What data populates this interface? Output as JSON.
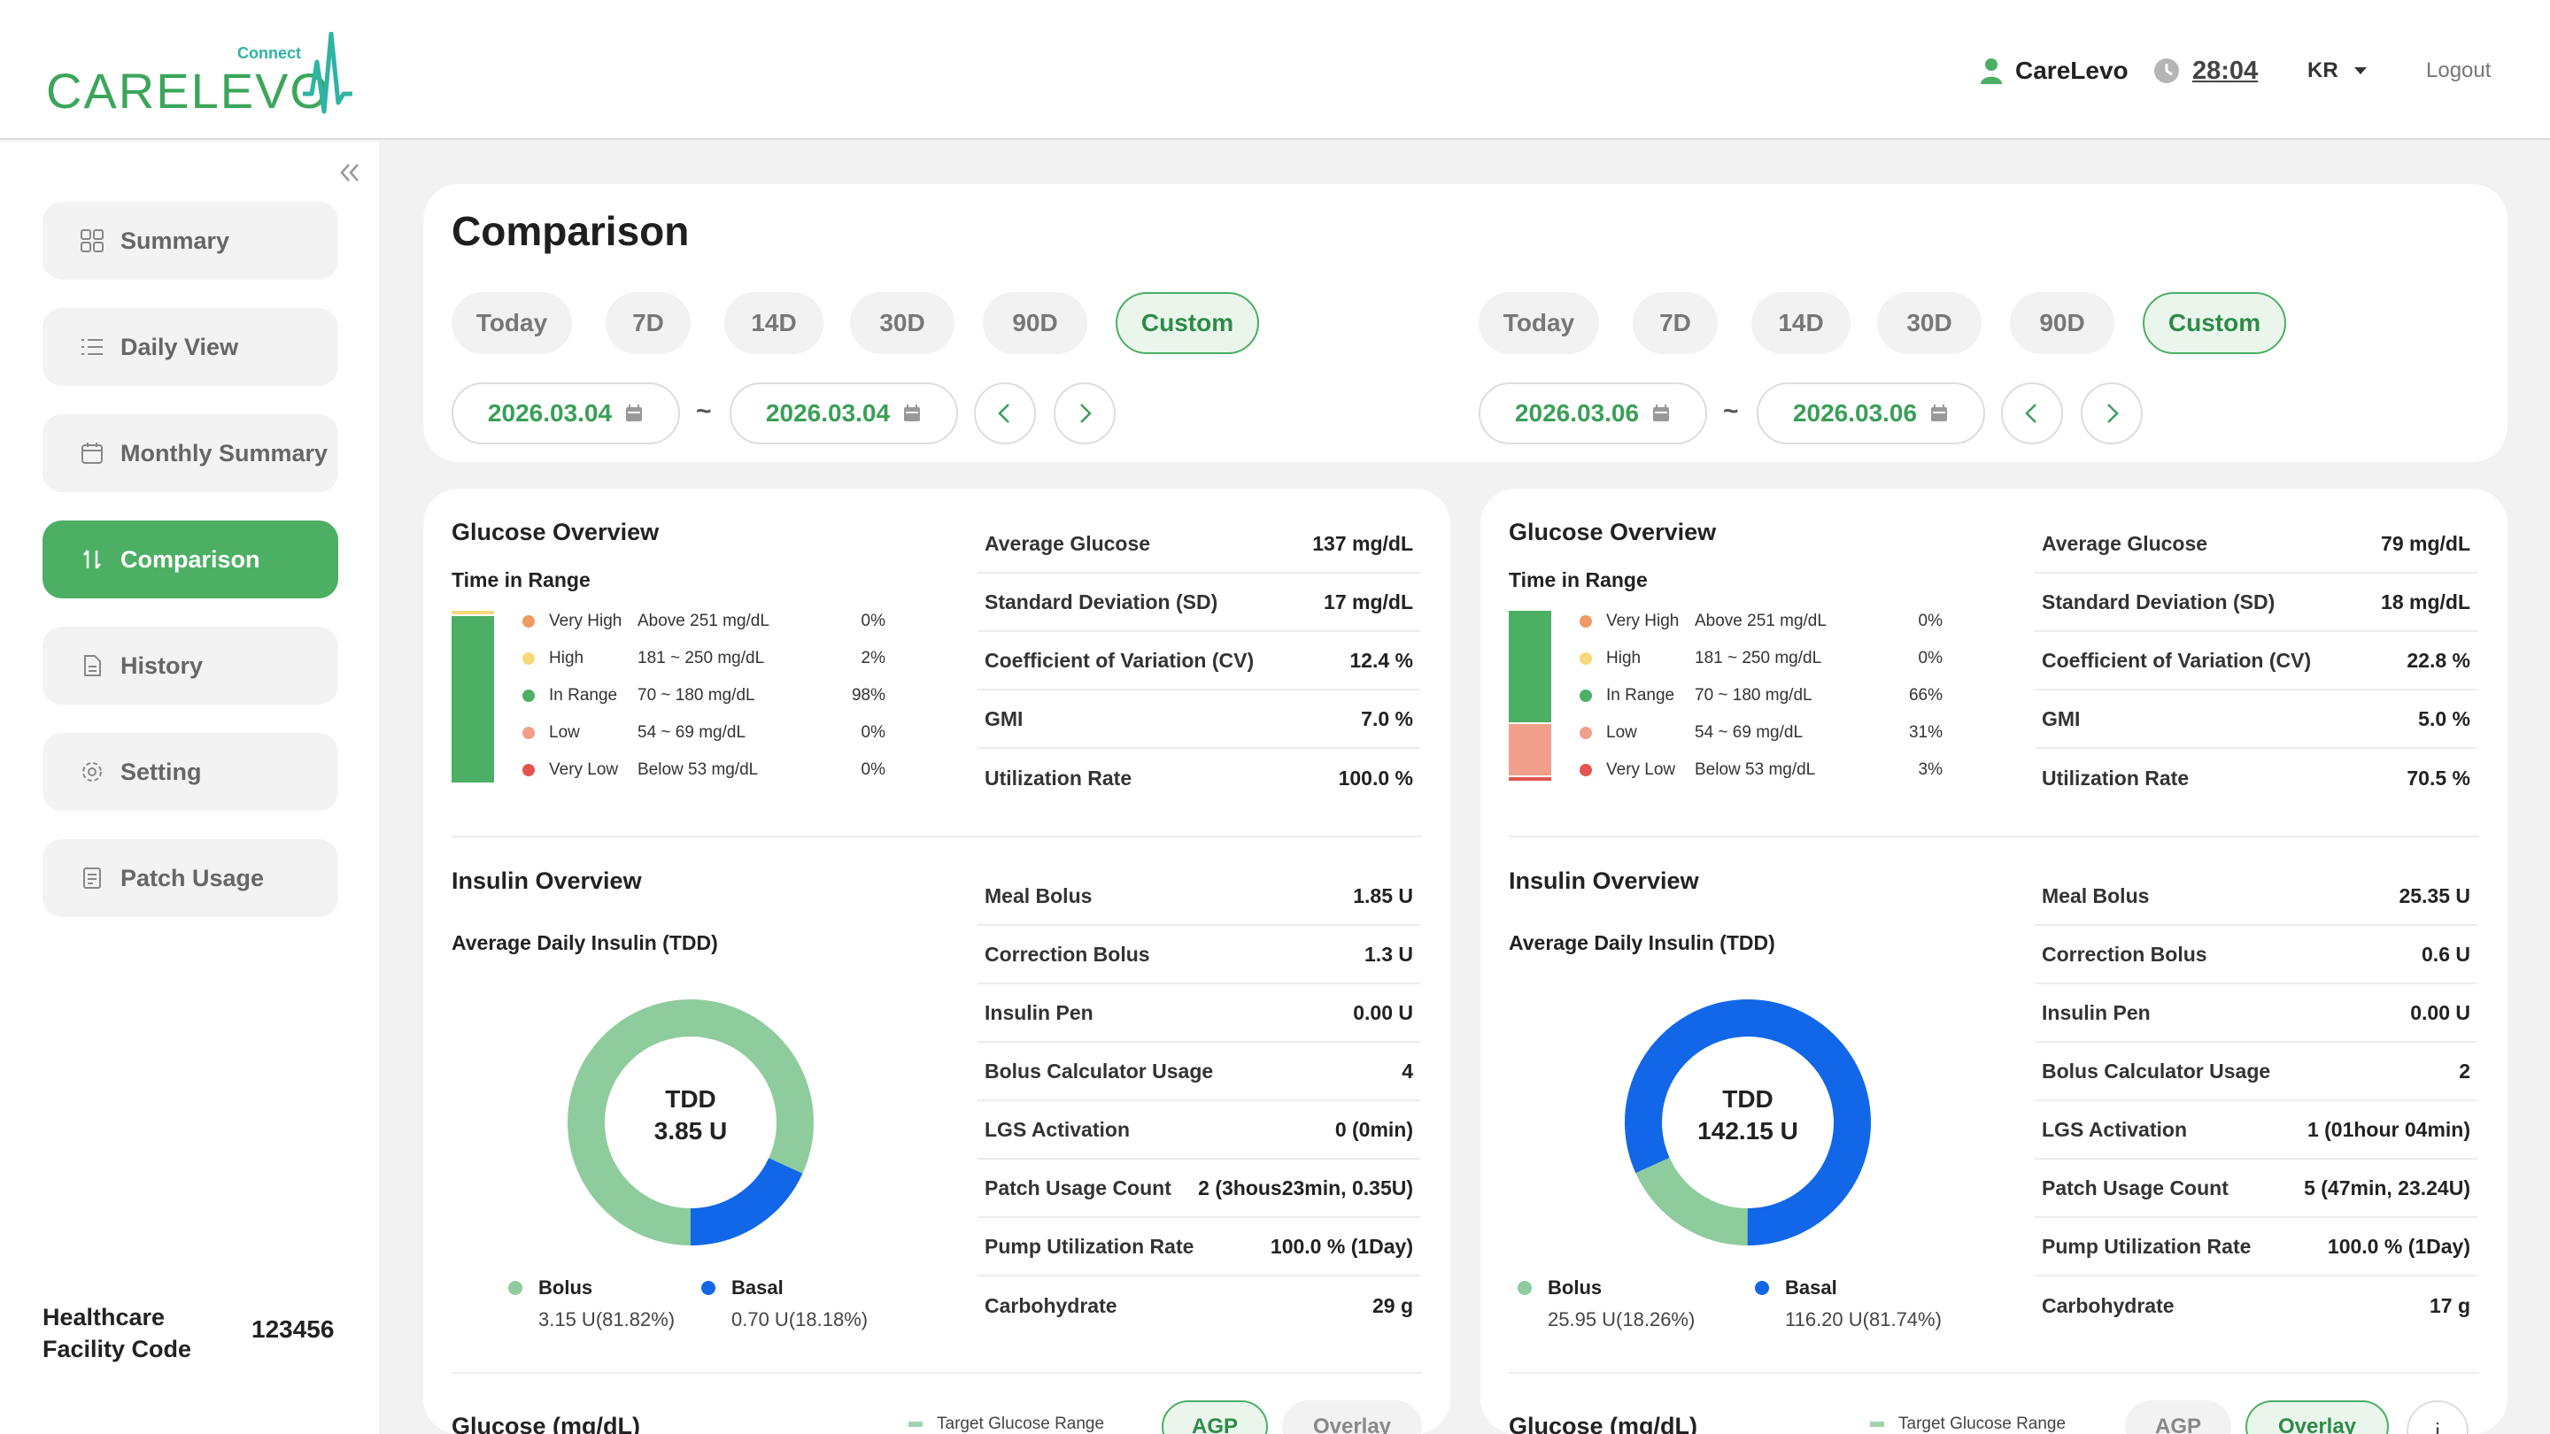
{
  "header": {
    "logo_text": "CARELEVO",
    "logo_tag": "Connect",
    "user": "CareLevo",
    "timer": "28:04",
    "language": "KR",
    "logout": "Logout"
  },
  "sidebar": {
    "items": [
      {
        "label": "Summary",
        "icon": "grid-icon"
      },
      {
        "label": "Daily View",
        "icon": "list-icon"
      },
      {
        "label": "Monthly Summary",
        "icon": "calendar-icon"
      },
      {
        "label": "Comparison",
        "icon": "compare-icon"
      },
      {
        "label": "History",
        "icon": "document-icon"
      },
      {
        "label": "Setting",
        "icon": "gear-icon"
      },
      {
        "label": "Patch Usage",
        "icon": "clipboard-icon"
      }
    ],
    "facility_label": "Healthcare Facility Code",
    "facility_code": "123456"
  },
  "comparison": {
    "title": "Comparison",
    "range_buttons": [
      "Today",
      "7D",
      "14D",
      "30D",
      "90D",
      "Custom"
    ],
    "left": {
      "selected": "Custom",
      "start": "2026.03.04",
      "end": "2026.03.04"
    },
    "right": {
      "selected": "Custom",
      "start": "2026.03.06",
      "end": "2026.03.06"
    },
    "tilde": "~"
  },
  "labels": {
    "glucose_overview": "Glucose Overview",
    "time_in_range": "Time in Range",
    "insulin_overview": "Insulin Overview",
    "tdd_title": "Average Daily Insulin (TDD)",
    "tdd": "TDD",
    "bolus": "Bolus",
    "basal": "Basal",
    "glucose_chart": "Glucose (mg/dL)",
    "target_range": "Target Glucose Range",
    "agp": "AGP",
    "overlay": "Overlay",
    "tir_levels": [
      "Very High",
      "High",
      "In Range",
      "Low",
      "Very Low"
    ],
    "tir_ranges": [
      "Above 251 mg/dL",
      "181 ~ 250 mg/dL",
      "70 ~ 180 mg/dL",
      "54 ~ 69 mg/dL",
      "Below 53 mg/dL"
    ],
    "glucose_stat_labels": [
      "Average Glucose",
      "Standard Deviation (SD)",
      "Coefficient of Variation (CV)",
      "GMI",
      "Utilization Rate"
    ],
    "insulin_stat_labels": [
      "Meal Bolus",
      "Correction Bolus",
      "Insulin Pen",
      "Bolus Calculator Usage",
      "LGS Activation",
      "Patch Usage Count",
      "Pump Utilization Rate",
      "Carbohydrate"
    ]
  },
  "colors": {
    "very_high": "#ef9a62",
    "high": "#f6d97a",
    "in_range": "#4caf64",
    "low": "#f0a08a",
    "very_low": "#e0564f",
    "bolus": "#8fcc9d",
    "basal": "#1167e8",
    "accent": "#4caf64"
  },
  "panels": [
    {
      "tir_pct": [
        "0%",
        "2%",
        "98%",
        "0%",
        "0%"
      ],
      "tir_values": [
        0,
        2,
        98,
        0,
        0
      ],
      "glucose_stats": [
        "137 mg/dL",
        "17 mg/dL",
        "12.4 %",
        "7.0 %",
        "100.0 %"
      ],
      "tdd_value": "3.85 U",
      "bolus_value": "3.15 U(81.82%)",
      "basal_value": "0.70 U(18.18%)",
      "bolus_pct": 81.82,
      "insulin_stats": [
        "1.85 U",
        "1.3 U",
        "0.00 U",
        "4",
        "0 (0min)",
        "2 (3hous23min, 0.35U)",
        "100.0 % (1Day)",
        "29 g"
      ],
      "active_view": "AGP"
    },
    {
      "tir_pct": [
        "0%",
        "0%",
        "66%",
        "31%",
        "3%"
      ],
      "tir_values": [
        0,
        0,
        66,
        31,
        3
      ],
      "glucose_stats": [
        "79 mg/dL",
        "18 mg/dL",
        "22.8 %",
        "5.0 %",
        "70.5 %"
      ],
      "tdd_value": "142.15 U",
      "bolus_value": "25.95 U(18.26%)",
      "basal_value": "116.20 U(81.74%)",
      "bolus_pct": 18.26,
      "insulin_stats": [
        "25.35 U",
        "0.6 U",
        "0.00 U",
        "2",
        "1 (01hour 04min)",
        "5 (47min, 23.24U)",
        "100.0 % (1Day)",
        "17 g"
      ],
      "active_view": "Overlay"
    }
  ]
}
